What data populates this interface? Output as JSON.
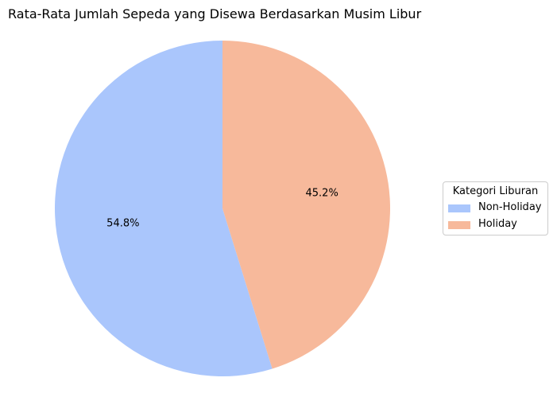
{
  "chart_data": {
    "type": "pie",
    "title": "Rata-Rata Jumlah Sepeda yang Disewa Berdasarkan Musim Libur",
    "categories": [
      "Non-Holiday",
      "Holiday"
    ],
    "values": [
      54.8,
      45.2
    ],
    "labels": [
      "54.8%",
      "45.2%"
    ],
    "colors": [
      "#aac6fc",
      "#f7b99b"
    ],
    "start_angle_deg": 90,
    "direction": "counterclockwise",
    "legend": {
      "title": "Kategori Liburan",
      "placement": "right"
    }
  }
}
